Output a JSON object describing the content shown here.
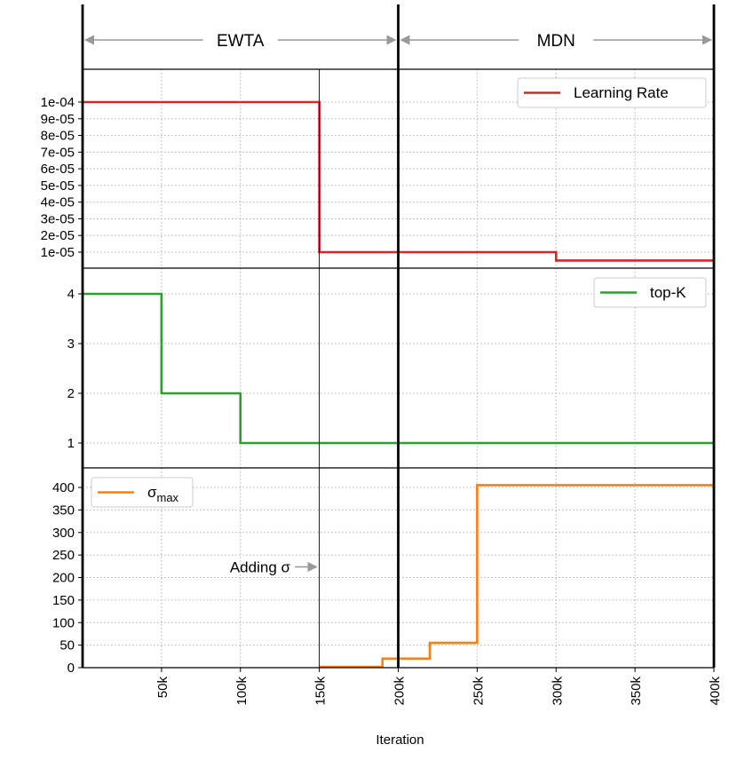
{
  "chart_data": {
    "type": "line",
    "step": true,
    "xlabel": "Iteration",
    "xlim": [
      0,
      400000
    ],
    "x_ticks": [
      50000,
      100000,
      150000,
      200000,
      250000,
      300000,
      350000,
      400000
    ],
    "x_tick_labels": [
      "50k",
      "100k",
      "150k",
      "200k",
      "250k",
      "300k",
      "350k",
      "400k"
    ],
    "grid": true,
    "phases": [
      {
        "label": "EWTA",
        "start": 0,
        "end": 200000
      },
      {
        "label": "MDN",
        "start": 200000,
        "end": 400000
      }
    ],
    "panels": [
      {
        "name": "Learning Rate",
        "color": "#d62728",
        "legend_position": "top-right",
        "ylim": [
          0,
          0.000108
        ],
        "y_ticks": [
          1e-05,
          2e-05,
          3e-05,
          4e-05,
          5e-05,
          6e-05,
          7e-05,
          8e-05,
          9e-05,
          0.0001
        ],
        "y_tick_labels": [
          "1e-05",
          "2e-05",
          "3e-05",
          "4e-05",
          "5e-05",
          "6e-05",
          "7e-05",
          "8e-05",
          "9e-05",
          "1e-04"
        ],
        "x": [
          0,
          150000,
          150000,
          300000,
          300000,
          400000
        ],
        "y": [
          0.0001,
          0.0001,
          1e-05,
          1e-05,
          5e-06,
          5e-06
        ]
      },
      {
        "name": "top-K",
        "color": "#2ca02c",
        "legend_position": "top-right",
        "ylim": [
          0.5,
          4.5
        ],
        "y_ticks": [
          1,
          2,
          3,
          4
        ],
        "y_tick_labels": [
          "1",
          "2",
          "3",
          "4"
        ],
        "x": [
          0,
          50000,
          50000,
          100000,
          100000,
          400000
        ],
        "y": [
          4,
          4,
          2,
          2,
          1,
          1
        ]
      },
      {
        "name": "σmax",
        "name_base": "σ",
        "name_sub": "max",
        "color": "#ff7f0e",
        "legend_position": "top-left",
        "ylim": [
          0,
          430
        ],
        "y_ticks": [
          0,
          50,
          100,
          150,
          200,
          250,
          300,
          350,
          400
        ],
        "y_tick_labels": [
          "0",
          "50",
          "100",
          "150",
          "200",
          "250",
          "300",
          "350",
          "400"
        ],
        "x": [
          150000,
          190000,
          190000,
          220000,
          220000,
          250000,
          250000,
          400000
        ],
        "y": [
          2,
          2,
          20,
          20,
          55,
          55,
          405,
          405
        ],
        "annotation": {
          "text": "Adding σ",
          "x": 150000,
          "y": 200
        }
      }
    ]
  }
}
